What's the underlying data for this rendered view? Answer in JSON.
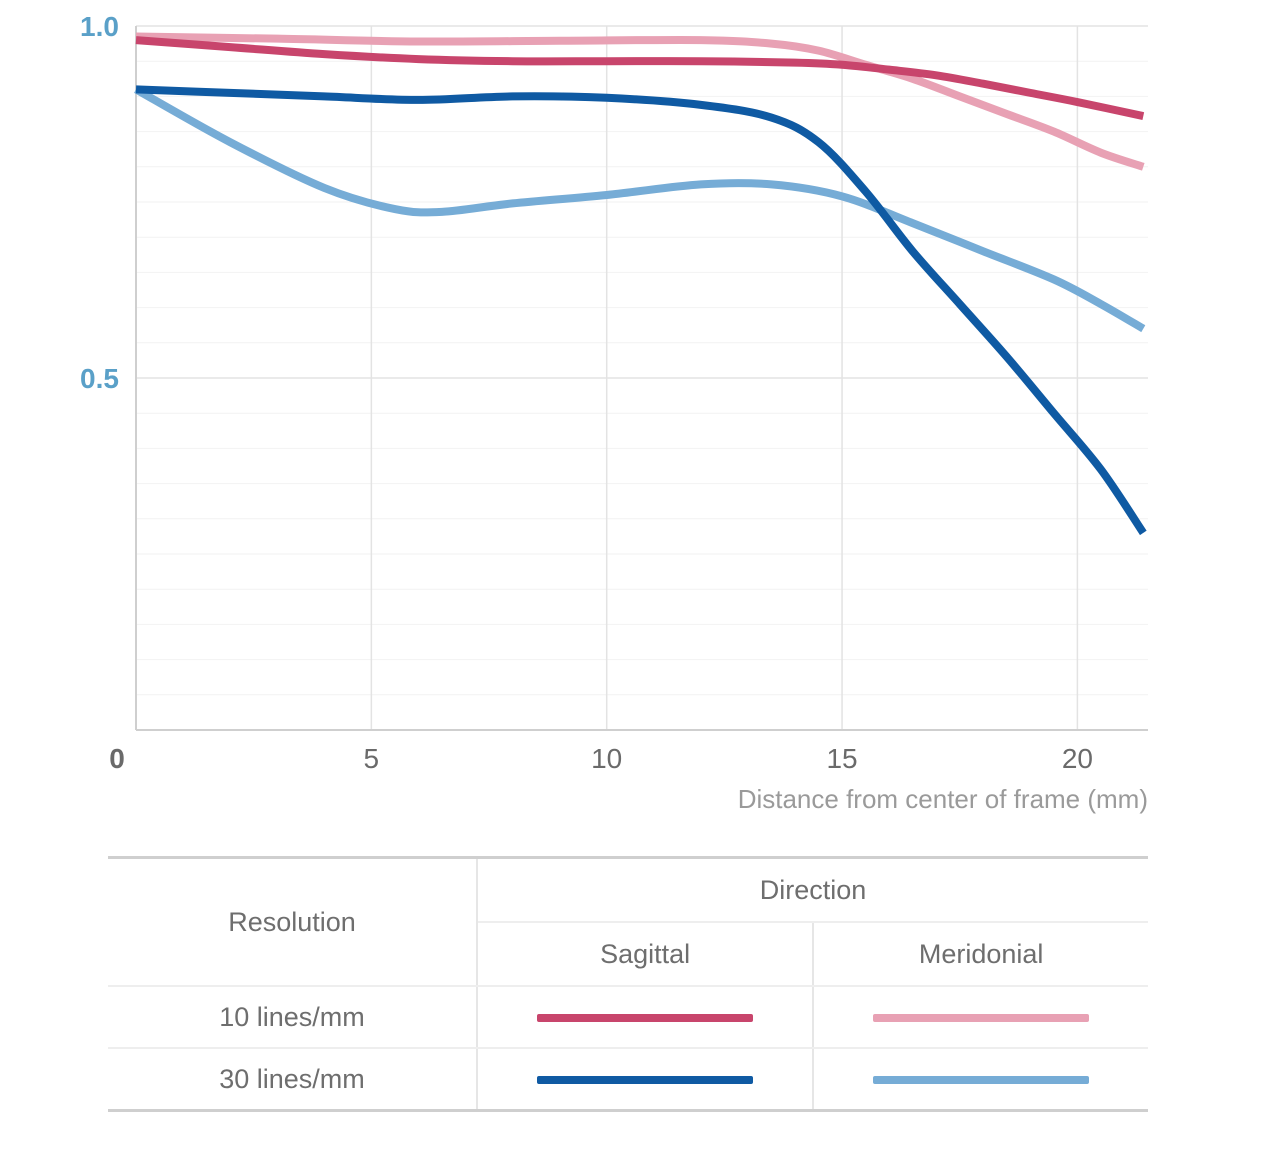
{
  "chart_data": {
    "type": "line",
    "title": "",
    "xlabel": "Distance from center of frame (mm)",
    "ylabel": "",
    "xlim": [
      0,
      21.5
    ],
    "ylim": [
      0,
      1.0
    ],
    "x_ticks": [
      0,
      5,
      10,
      15,
      20
    ],
    "x_tick_labels": [
      "0",
      "5",
      "10",
      "15",
      "20"
    ],
    "y_ticks": [
      0.5,
      1.0
    ],
    "y_tick_labels": [
      "0.5",
      "1.0"
    ],
    "grid": true,
    "legend_placement": "bottom-table",
    "series": [
      {
        "color": "#c8456c",
        "width": 8,
        "points": [
          [
            0,
            0.98
          ],
          [
            2,
            0.97
          ],
          [
            4,
            0.96
          ],
          [
            6,
            0.953
          ],
          [
            8,
            0.95
          ],
          [
            10,
            0.95
          ],
          [
            12,
            0.95
          ],
          [
            14,
            0.948
          ],
          [
            15,
            0.945
          ],
          [
            16,
            0.938
          ],
          [
            17,
            0.93
          ],
          [
            18,
            0.918
          ],
          [
            19,
            0.905
          ],
          [
            20,
            0.892
          ],
          [
            21.4,
            0.872
          ]
        ]
      },
      {
        "color": "#e8a1b4",
        "width": 8,
        "points": [
          [
            0,
            0.985
          ],
          [
            3,
            0.982
          ],
          [
            6,
            0.978
          ],
          [
            9,
            0.979
          ],
          [
            12,
            0.98
          ],
          [
            13.5,
            0.975
          ],
          [
            14.5,
            0.965
          ],
          [
            15.5,
            0.945
          ],
          [
            16.5,
            0.925
          ],
          [
            17.5,
            0.9
          ],
          [
            18.5,
            0.875
          ],
          [
            19.5,
            0.85
          ],
          [
            20.5,
            0.82
          ],
          [
            21.4,
            0.8
          ]
        ]
      },
      {
        "color": "#0f5aa3",
        "width": 8,
        "points": [
          [
            0,
            0.91
          ],
          [
            2,
            0.905
          ],
          [
            4,
            0.9
          ],
          [
            6,
            0.895
          ],
          [
            8,
            0.9
          ],
          [
            10,
            0.898
          ],
          [
            12,
            0.888
          ],
          [
            13.5,
            0.87
          ],
          [
            14.5,
            0.835
          ],
          [
            15.5,
            0.765
          ],
          [
            16.5,
            0.68
          ],
          [
            17.5,
            0.605
          ],
          [
            18.5,
            0.53
          ],
          [
            19.5,
            0.45
          ],
          [
            20.5,
            0.37
          ],
          [
            21.4,
            0.28
          ]
        ]
      },
      {
        "color": "#76acd6",
        "width": 8,
        "points": [
          [
            0,
            0.91
          ],
          [
            2,
            0.835
          ],
          [
            4,
            0.77
          ],
          [
            5.5,
            0.74
          ],
          [
            6.5,
            0.736
          ],
          [
            8,
            0.748
          ],
          [
            10,
            0.76
          ],
          [
            12,
            0.775
          ],
          [
            13.5,
            0.775
          ],
          [
            15,
            0.758
          ],
          [
            16.5,
            0.72
          ],
          [
            18,
            0.68
          ],
          [
            19.5,
            0.64
          ],
          [
            20.5,
            0.605
          ],
          [
            21.4,
            0.57
          ]
        ]
      }
    ]
  },
  "legend": {
    "resolution_header": "Resolution",
    "direction_header": "Direction",
    "sagittal_header": "Sagittal",
    "meridional_header": "Meridonial",
    "rows": [
      {
        "label": "10 lines/mm",
        "sagittal_color": "#c8456c",
        "meridional_color": "#e8a1b4"
      },
      {
        "label": "30 lines/mm",
        "sagittal_color": "#0f5aa3",
        "meridional_color": "#76acd6"
      }
    ]
  },
  "colors": {
    "axis_tick_label_y": "#5aa0c8",
    "axis_tick_label_zero": "#5aa0c8",
    "grid_major": "#e3e3e3",
    "grid_minor": "#f2f2f2",
    "axis_line": "#cfcfcf"
  }
}
